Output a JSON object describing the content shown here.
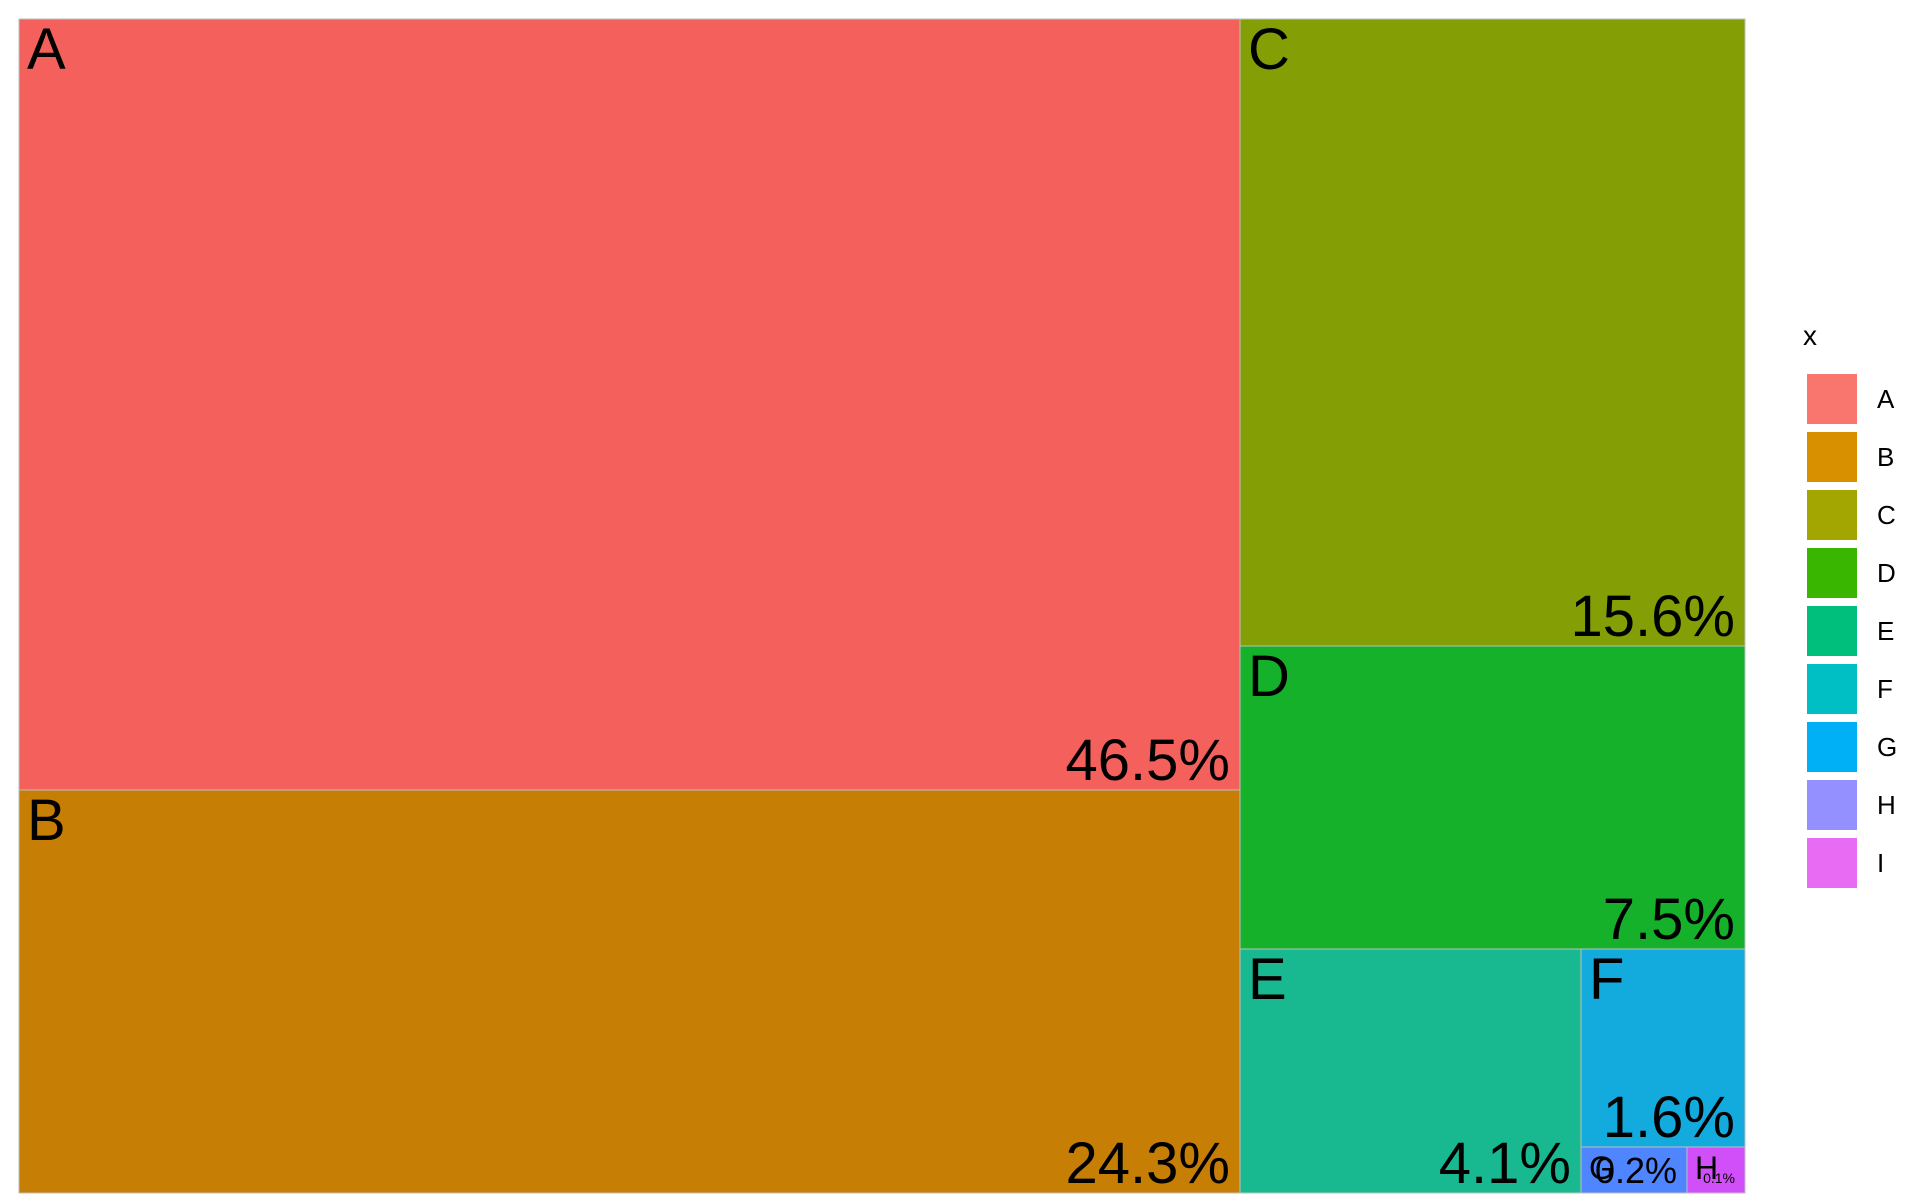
{
  "chart_data": {
    "type": "treemap",
    "legend": {
      "title": "x",
      "position": "right",
      "entries": [
        {
          "name": "A",
          "color": "#F8766D"
        },
        {
          "name": "B",
          "color": "#D89000"
        },
        {
          "name": "C",
          "color": "#A3A500"
        },
        {
          "name": "D",
          "color": "#39B600"
        },
        {
          "name": "E",
          "color": "#00BF7D"
        },
        {
          "name": "F",
          "color": "#00BFC4"
        },
        {
          "name": "G",
          "color": "#00B0F6"
        },
        {
          "name": "H",
          "color": "#9590FF"
        },
        {
          "name": "I",
          "color": "#E76BF3"
        }
      ]
    },
    "tiles": [
      {
        "name": "A",
        "value": 46.5,
        "label": "46.5%",
        "color": "#F4605C"
      },
      {
        "name": "B",
        "value": 24.3,
        "label": "24.3%",
        "color": "#C77E04"
      },
      {
        "name": "C",
        "value": 15.6,
        "label": "15.6%",
        "color": "#849F05"
      },
      {
        "name": "D",
        "value": 7.5,
        "label": "7.5%",
        "color": "#16B12B"
      },
      {
        "name": "E",
        "value": 4.1,
        "label": "4.1%",
        "color": "#18B890"
      },
      {
        "name": "F",
        "value": 1.6,
        "label": "1.6%",
        "color": "#13ABDE"
      },
      {
        "name": "G",
        "value": 0.2,
        "label": "0.2%",
        "color": "#4F86FF"
      },
      {
        "name": "H",
        "value": 0.1,
        "label": "0.1%",
        "color": "#D04FF8"
      }
    ]
  }
}
